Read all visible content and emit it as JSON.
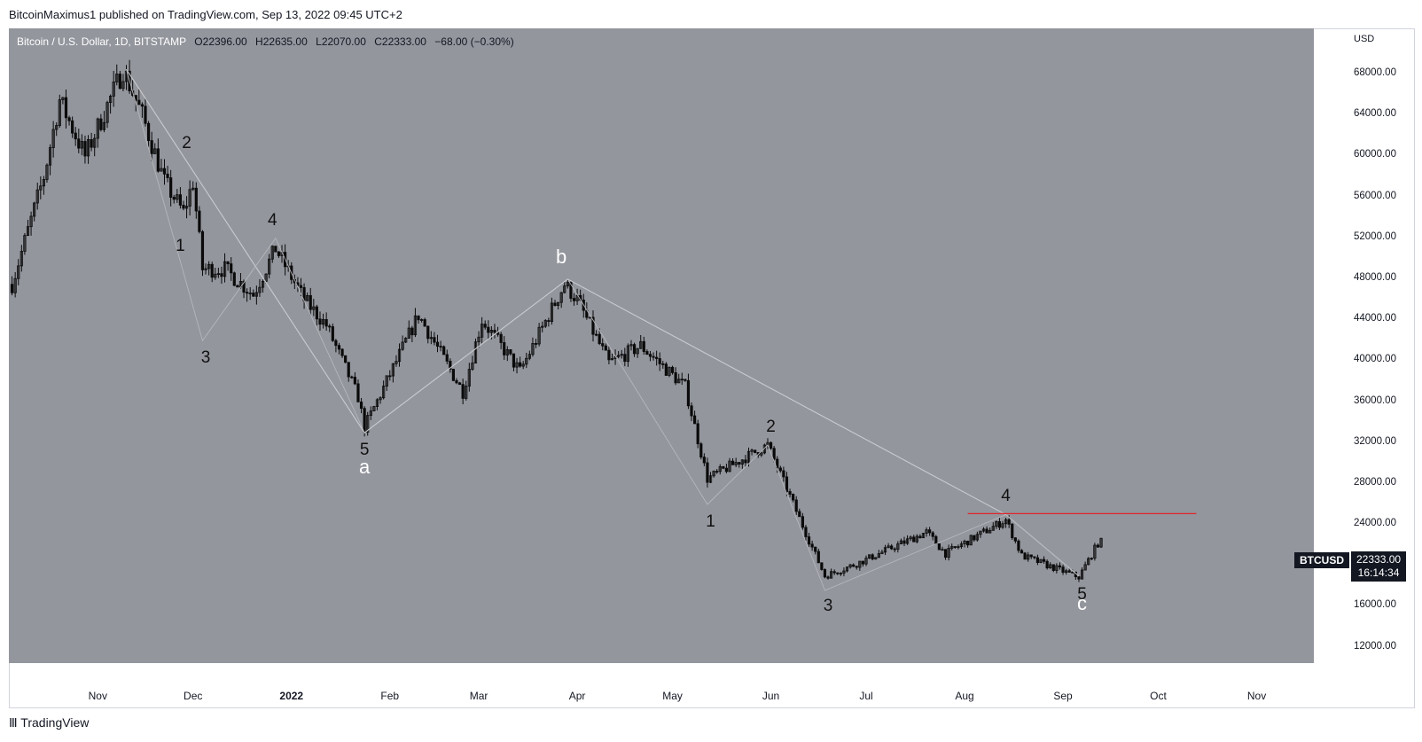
{
  "header": {
    "publish_line": "BitcoinMaximus1 published on TradingView.com, Sep 13, 2022 09:45 UTC+2"
  },
  "legend": {
    "symbol": "Bitcoin / U.S. Dollar, 1D, BITSTAMP",
    "o_label": "O",
    "o_value": "22396.00",
    "h_label": "H",
    "h_value": "22635.00",
    "l_label": "L",
    "l_value": "22070.00",
    "c_label": "C",
    "c_value": "22333.00",
    "change": "−68.00 (−0.30%)"
  },
  "price_axis": {
    "currency": "USD",
    "ticks": [
      "68000.00",
      "64000.00",
      "60000.00",
      "56000.00",
      "52000.00",
      "48000.00",
      "44000.00",
      "40000.00",
      "36000.00",
      "32000.00",
      "28000.00",
      "24000.00",
      "20000.00",
      "16000.00",
      "12000.00"
    ]
  },
  "time_axis": {
    "ticks": [
      {
        "label": "Nov",
        "bold": false
      },
      {
        "label": "Dec",
        "bold": false
      },
      {
        "label": "2022",
        "bold": true
      },
      {
        "label": "Feb",
        "bold": false
      },
      {
        "label": "Mar",
        "bold": false
      },
      {
        "label": "Apr",
        "bold": false
      },
      {
        "label": "May",
        "bold": false
      },
      {
        "label": "Jun",
        "bold": false
      },
      {
        "label": "Jul",
        "bold": false
      },
      {
        "label": "Aug",
        "bold": false
      },
      {
        "label": "Sep",
        "bold": false
      },
      {
        "label": "Oct",
        "bold": false
      },
      {
        "label": "Nov",
        "bold": false
      }
    ]
  },
  "last_price": {
    "symbol": "BTCUSD",
    "price": "22333.00",
    "countdown": "16:14:34"
  },
  "footer": {
    "logo_text": "TradingView"
  },
  "colors": {
    "background": "#93969d",
    "candle": "#0b0b0b",
    "wave_line": "#c9cbcf",
    "resistance": "#e0242c"
  },
  "chart_data": {
    "type": "candlestick",
    "title": "Bitcoin / U.S. Dollar, 1D, BITSTAMP",
    "ylim": [
      10500,
      72500
    ],
    "x_range": [
      "2021-10-04",
      "2022-11-19"
    ],
    "y_ticks": [
      68000,
      64000,
      60000,
      56000,
      52000,
      48000,
      44000,
      40000,
      36000,
      32000,
      28000,
      24000,
      20000,
      16000,
      12000
    ],
    "anchors": [
      {
        "date": "2021-10-05",
        "price": 47500
      },
      {
        "date": "2021-10-15",
        "price": 58000
      },
      {
        "date": "2021-10-20",
        "price": 65500
      },
      {
        "date": "2021-10-28",
        "price": 60000
      },
      {
        "date": "2021-11-09",
        "price": 68500
      },
      {
        "date": "2021-11-15",
        "price": 64000
      },
      {
        "date": "2021-11-22",
        "price": 57500
      },
      {
        "date": "2021-11-28",
        "price": 54500
      },
      {
        "date": "2021-12-01",
        "price": 57500
      },
      {
        "date": "2021-12-04",
        "price": 49000
      },
      {
        "date": "2021-12-11",
        "price": 49000
      },
      {
        "date": "2021-12-20",
        "price": 46500
      },
      {
        "date": "2021-12-27",
        "price": 51000
      },
      {
        "date": "2022-01-05",
        "price": 46000
      },
      {
        "date": "2022-01-12",
        "price": 43500
      },
      {
        "date": "2022-01-22",
        "price": 36500
      },
      {
        "date": "2022-01-24",
        "price": 33500
      },
      {
        "date": "2022-02-10",
        "price": 44500
      },
      {
        "date": "2022-02-24",
        "price": 37000
      },
      {
        "date": "2022-03-02",
        "price": 44000
      },
      {
        "date": "2022-03-14",
        "price": 39000
      },
      {
        "date": "2022-03-28",
        "price": 47500
      },
      {
        "date": "2022-04-01",
        "price": 46000
      },
      {
        "date": "2022-04-11",
        "price": 39800
      },
      {
        "date": "2022-04-21",
        "price": 41500
      },
      {
        "date": "2022-05-05",
        "price": 37500
      },
      {
        "date": "2022-05-12",
        "price": 28500
      },
      {
        "date": "2022-05-31",
        "price": 31800
      },
      {
        "date": "2022-06-13",
        "price": 22500
      },
      {
        "date": "2022-06-18",
        "price": 19000
      },
      {
        "date": "2022-06-28",
        "price": 20200
      },
      {
        "date": "2022-07-20",
        "price": 23300
      },
      {
        "date": "2022-07-26",
        "price": 21200
      },
      {
        "date": "2022-08-14",
        "price": 24500
      },
      {
        "date": "2022-08-19",
        "price": 21000
      },
      {
        "date": "2022-09-06",
        "price": 18900
      },
      {
        "date": "2022-09-12",
        "price": 22200
      },
      {
        "date": "2022-09-13",
        "price": 22333
      }
    ],
    "wave_lines": [
      {
        "name": "primary-wave",
        "points": [
          {
            "date": "2021-11-10",
            "price": 68500
          },
          {
            "date": "2022-01-24",
            "price": 33000
          },
          {
            "date": "2022-03-29",
            "price": 48000
          },
          {
            "date": "2022-08-14",
            "price": 25000
          },
          {
            "date": "2022-09-06",
            "price": 19000
          }
        ]
      },
      {
        "name": "subwave-a",
        "points": [
          {
            "date": "2021-11-10",
            "price": 68500
          },
          {
            "date": "2021-12-04",
            "price": 42000
          },
          {
            "date": "2021-12-27",
            "price": 52000
          },
          {
            "date": "2022-01-24",
            "price": 33000
          }
        ]
      },
      {
        "name": "subwave-c",
        "points": [
          {
            "date": "2022-03-29",
            "price": 48000
          },
          {
            "date": "2022-05-12",
            "price": 26000
          },
          {
            "date": "2022-05-31",
            "price": 31800
          },
          {
            "date": "2022-06-18",
            "price": 17600
          },
          {
            "date": "2022-08-14",
            "price": 25000
          },
          {
            "date": "2022-09-06",
            "price": 19000
          }
        ]
      }
    ],
    "resistance": {
      "price": 25100,
      "from": "2022-08-02",
      "to": "2022-10-13"
    },
    "wave_labels": [
      {
        "text": "2",
        "date": "2021-11-29",
        "price": 61200,
        "style": "dark"
      },
      {
        "text": "1",
        "date": "2021-11-27",
        "price": 51200,
        "style": "dark"
      },
      {
        "text": "3",
        "date": "2021-12-05",
        "price": 40300,
        "style": "dark"
      },
      {
        "text": "4",
        "date": "2021-12-26",
        "price": 53700,
        "style": "dark"
      },
      {
        "text": "5",
        "date": "2022-01-24",
        "price": 31300,
        "style": "dark"
      },
      {
        "text": "a",
        "date": "2022-01-24",
        "price": 29600,
        "style": "light"
      },
      {
        "text": "b",
        "date": "2022-03-27",
        "price": 50200,
        "style": "light"
      },
      {
        "text": "1",
        "date": "2022-05-13",
        "price": 24300,
        "style": "dark"
      },
      {
        "text": "2",
        "date": "2022-06-01",
        "price": 33500,
        "style": "dark"
      },
      {
        "text": "3",
        "date": "2022-06-19",
        "price": 16000,
        "style": "dark"
      },
      {
        "text": "4",
        "date": "2022-08-14",
        "price": 26800,
        "style": "dark"
      },
      {
        "text": "5",
        "date": "2022-09-07",
        "price": 17200,
        "style": "dark"
      },
      {
        "text": "c",
        "date": "2022-09-07",
        "price": 16300,
        "style": "light"
      }
    ]
  }
}
